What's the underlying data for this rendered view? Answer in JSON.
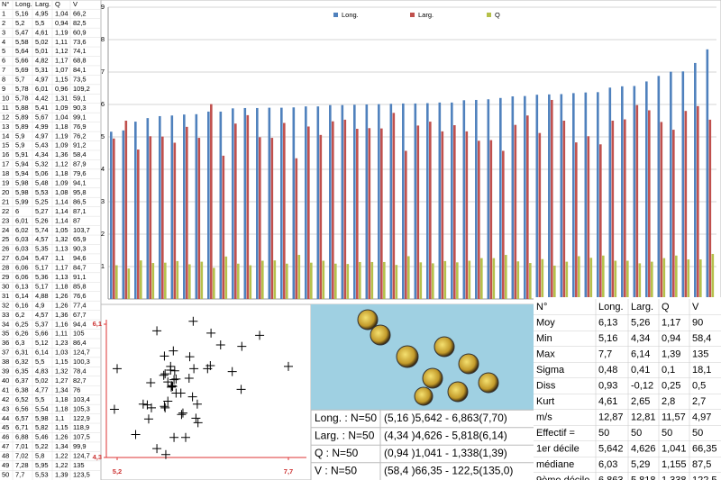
{
  "data_table": {
    "columns": [
      "N°",
      "Long.",
      "Larg.",
      "Q",
      "V"
    ],
    "rows": [
      [
        "1",
        "5,16",
        "4,95",
        "1,04",
        "66,2"
      ],
      [
        "2",
        "5,2",
        "5,5",
        "0,94",
        "82,5"
      ],
      [
        "3",
        "5,47",
        "4,61",
        "1,19",
        "60,9"
      ],
      [
        "4",
        "5,58",
        "5,02",
        "1,11",
        "73,6"
      ],
      [
        "5",
        "5,64",
        "5,01",
        "1,12",
        "74,1"
      ],
      [
        "6",
        "5,66",
        "4,82",
        "1,17",
        "68,8"
      ],
      [
        "7",
        "5,69",
        "5,31",
        "1,07",
        "84,1"
      ],
      [
        "8",
        "5,7",
        "4,97",
        "1,15",
        "73,5"
      ],
      [
        "9",
        "5,78",
        "6,01",
        "0,96",
        "109,2"
      ],
      [
        "10",
        "5,78",
        "4,42",
        "1,31",
        "59,1"
      ],
      [
        "11",
        "5,88",
        "5,41",
        "1,09",
        "90,3"
      ],
      [
        "12",
        "5,89",
        "5,67",
        "1,04",
        "99,1"
      ],
      [
        "13",
        "5,89",
        "4,99",
        "1,18",
        "76,9"
      ],
      [
        "14",
        "5,9",
        "4,97",
        "1,19",
        "76,2"
      ],
      [
        "15",
        "5,9",
        "5,43",
        "1,09",
        "91,2"
      ],
      [
        "16",
        "5,91",
        "4,34",
        "1,36",
        "58,4"
      ],
      [
        "17",
        "5,94",
        "5,32",
        "1,12",
        "87,9"
      ],
      [
        "18",
        "5,94",
        "5,06",
        "1,18",
        "79,6"
      ],
      [
        "19",
        "5,98",
        "5,48",
        "1,09",
        "94,1"
      ],
      [
        "20",
        "5,98",
        "5,53",
        "1,08",
        "95,8"
      ],
      [
        "21",
        "5,99",
        "5,25",
        "1,14",
        "86,5"
      ],
      [
        "22",
        "6",
        "5,27",
        "1,14",
        "87,1"
      ],
      [
        "23",
        "6,01",
        "5,26",
        "1,14",
        "87"
      ],
      [
        "24",
        "6,02",
        "5,74",
        "1,05",
        "103,7"
      ],
      [
        "25",
        "6,03",
        "4,57",
        "1,32",
        "65,9"
      ],
      [
        "26",
        "6,03",
        "5,35",
        "1,13",
        "90,3"
      ],
      [
        "27",
        "6,04",
        "5,47",
        "1,1",
        "94,6"
      ],
      [
        "28",
        "6,06",
        "5,17",
        "1,17",
        "84,7"
      ],
      [
        "29",
        "6,06",
        "5,36",
        "1,13",
        "91,1"
      ],
      [
        "30",
        "6,13",
        "5,17",
        "1,18",
        "85,8"
      ],
      [
        "31",
        "6,14",
        "4,88",
        "1,26",
        "76,6"
      ],
      [
        "32",
        "6,16",
        "4,9",
        "1,26",
        "77,4"
      ],
      [
        "33",
        "6,2",
        "4,57",
        "1,36",
        "67,7"
      ],
      [
        "34",
        "6,25",
        "5,37",
        "1,16",
        "94,4"
      ],
      [
        "35",
        "6,26",
        "5,66",
        "1,11",
        "105"
      ],
      [
        "36",
        "6,3",
        "5,12",
        "1,23",
        "86,4"
      ],
      [
        "37",
        "6,31",
        "6,14",
        "1,03",
        "124,7"
      ],
      [
        "38",
        "6,32",
        "5,5",
        "1,15",
        "100,3"
      ],
      [
        "39",
        "6,35",
        "4,83",
        "1,32",
        "78,4"
      ],
      [
        "40",
        "6,37",
        "5,02",
        "1,27",
        "82,7"
      ],
      [
        "41",
        "6,38",
        "4,77",
        "1,34",
        "76"
      ],
      [
        "42",
        "6,52",
        "5,5",
        "1,18",
        "103,4"
      ],
      [
        "43",
        "6,56",
        "5,54",
        "1,18",
        "105,3"
      ],
      [
        "44",
        "6,57",
        "5,98",
        "1,1",
        "122,9"
      ],
      [
        "45",
        "6,71",
        "5,82",
        "1,15",
        "118,9"
      ],
      [
        "46",
        "6,88",
        "5,46",
        "1,26",
        "107,5"
      ],
      [
        "47",
        "7,01",
        "5,22",
        "1,34",
        "99,9"
      ],
      [
        "48",
        "7,02",
        "5,8",
        "1,22",
        "124,7"
      ],
      [
        "49",
        "7,28",
        "5,95",
        "1,22",
        "135"
      ],
      [
        "50",
        "7,7",
        "5,53",
        "1,39",
        "123,5"
      ]
    ]
  },
  "chart_data": [
    {
      "type": "bar",
      "ylim": [
        0,
        9
      ],
      "yticks": [
        1,
        2,
        3,
        4,
        5,
        6,
        7,
        8,
        9
      ],
      "grid": true,
      "series": [
        {
          "name": "Long.",
          "color": "#4f81bd",
          "values": [
            5.16,
            5.2,
            5.47,
            5.58,
            5.64,
            5.66,
            5.69,
            5.7,
            5.78,
            5.78,
            5.88,
            5.89,
            5.89,
            5.9,
            5.9,
            5.91,
            5.94,
            5.94,
            5.98,
            5.98,
            5.99,
            6,
            6.01,
            6.02,
            6.03,
            6.03,
            6.04,
            6.06,
            6.06,
            6.13,
            6.14,
            6.16,
            6.2,
            6.25,
            6.26,
            6.3,
            6.31,
            6.32,
            6.35,
            6.37,
            6.38,
            6.52,
            6.56,
            6.57,
            6.71,
            6.88,
            7.01,
            7.02,
            7.28,
            7.7
          ]
        },
        {
          "name": "Larg.",
          "color": "#c0504d",
          "values": [
            4.95,
            5.5,
            4.61,
            5.02,
            5.01,
            4.82,
            5.31,
            4.97,
            6.01,
            4.42,
            5.41,
            5.67,
            4.99,
            4.97,
            5.43,
            4.34,
            5.32,
            5.06,
            5.48,
            5.53,
            5.25,
            5.27,
            5.26,
            5.74,
            4.57,
            5.35,
            5.47,
            5.17,
            5.36,
            5.17,
            4.88,
            4.9,
            4.57,
            5.37,
            5.66,
            5.12,
            6.14,
            5.5,
            4.83,
            5.02,
            4.77,
            5.5,
            5.54,
            5.98,
            5.82,
            5.46,
            5.22,
            5.8,
            5.95,
            5.53
          ]
        },
        {
          "name": "Q",
          "color": "#b5c04a",
          "values": [
            1.04,
            0.94,
            1.19,
            1.11,
            1.12,
            1.17,
            1.07,
            1.15,
            0.96,
            1.31,
            1.09,
            1.04,
            1.18,
            1.19,
            1.09,
            1.36,
            1.12,
            1.18,
            1.09,
            1.08,
            1.14,
            1.14,
            1.14,
            1.05,
            1.32,
            1.13,
            1.1,
            1.17,
            1.13,
            1.18,
            1.26,
            1.26,
            1.36,
            1.16,
            1.11,
            1.23,
            1.03,
            1.15,
            1.32,
            1.27,
            1.34,
            1.18,
            1.18,
            1.1,
            1.15,
            1.26,
            1.34,
            1.22,
            1.22,
            1.39
          ]
        }
      ],
      "legend": "top"
    },
    {
      "type": "scatter",
      "color": "#000000",
      "xlim": [
        5.2,
        7.7
      ],
      "xticks": [
        {
          "value": 5.2,
          "label": "5,2"
        },
        {
          "value": 7.7,
          "label": "7,7"
        }
      ],
      "ylim": [
        4.3,
        6.1
      ],
      "yticks": [
        {
          "value": 4.3,
          "label": "4,3"
        },
        {
          "value": 6.1,
          "label": "6,1"
        }
      ],
      "x": [
        5.16,
        5.2,
        5.47,
        5.58,
        5.64,
        5.66,
        5.69,
        5.7,
        5.78,
        5.78,
        5.88,
        5.89,
        5.89,
        5.9,
        5.9,
        5.91,
        5.94,
        5.94,
        5.98,
        5.98,
        5.99,
        6,
        6.01,
        6.02,
        6.03,
        6.03,
        6.04,
        6.06,
        6.06,
        6.13,
        6.14,
        6.16,
        6.2,
        6.25,
        6.26,
        6.3,
        6.31,
        6.32,
        6.35,
        6.37,
        6.38,
        6.52,
        6.56,
        6.57,
        6.71,
        6.88,
        7.01,
        7.02,
        7.28,
        7.7
      ],
      "values": [
        4.95,
        5.5,
        4.61,
        5.02,
        5.01,
        4.82,
        5.31,
        4.97,
        6.01,
        4.42,
        5.41,
        5.67,
        4.99,
        4.97,
        5.43,
        4.34,
        5.32,
        5.06,
        5.48,
        5.53,
        5.25,
        5.27,
        5.26,
        5.74,
        4.57,
        5.35,
        5.47,
        5.17,
        5.36,
        5.17,
        4.88,
        4.9,
        4.57,
        5.37,
        5.66,
        5.12,
        6.14,
        5.5,
        4.83,
        5.02,
        4.77,
        5.5,
        5.54,
        5.98,
        5.82,
        5.46,
        5.22,
        5.8,
        5.95,
        5.53
      ]
    }
  ],
  "summary": [
    {
      "label": "Long. : N=50",
      "range": "(5,16 )5,642 - 6,863(7,70)"
    },
    {
      "label": "Larg. : N=50",
      "range": "(4,34 )4,626 - 5,818(6,14)"
    },
    {
      "label": "Q : N=50",
      "range": "(0,94 )1,041 - 1,338(1,39)"
    },
    {
      "label": "V : N=50",
      "range": "(58,4 )66,35 - 122,5(135,0)"
    }
  ],
  "stats_table": {
    "columns": [
      "N°",
      "Long.",
      "Larg.",
      "Q",
      "V"
    ],
    "rows": [
      [
        "Moy",
        "6,13",
        "5,26",
        "1,17",
        "90"
      ],
      [
        "Min",
        "5,16",
        "4,34",
        "0,94",
        "58,4"
      ],
      [
        "Max",
        "7,7",
        "6,14",
        "1,39",
        "135"
      ],
      [
        "Sigma",
        "0,48",
        "0,41",
        "0,1",
        "18,1"
      ],
      [
        "Diss",
        "0,93",
        "-0,12",
        "0,25",
        "0,5"
      ],
      [
        "Kurt",
        "4,61",
        "2,65",
        "2,8",
        "2,7"
      ],
      [
        "m/s",
        "12,87",
        "12,81",
        "11,57",
        "4,97"
      ],
      [
        "Effectif =",
        "50",
        "50",
        "50",
        "50"
      ],
      [
        "1er décile",
        "5,642",
        "4,626",
        "1,041",
        "66,35"
      ],
      [
        "médiane",
        "6,03",
        "5,29",
        "1,155",
        "87,5"
      ],
      [
        "9ème décile",
        "6,863",
        "5,818",
        "1,338",
        "122,5"
      ]
    ]
  }
}
